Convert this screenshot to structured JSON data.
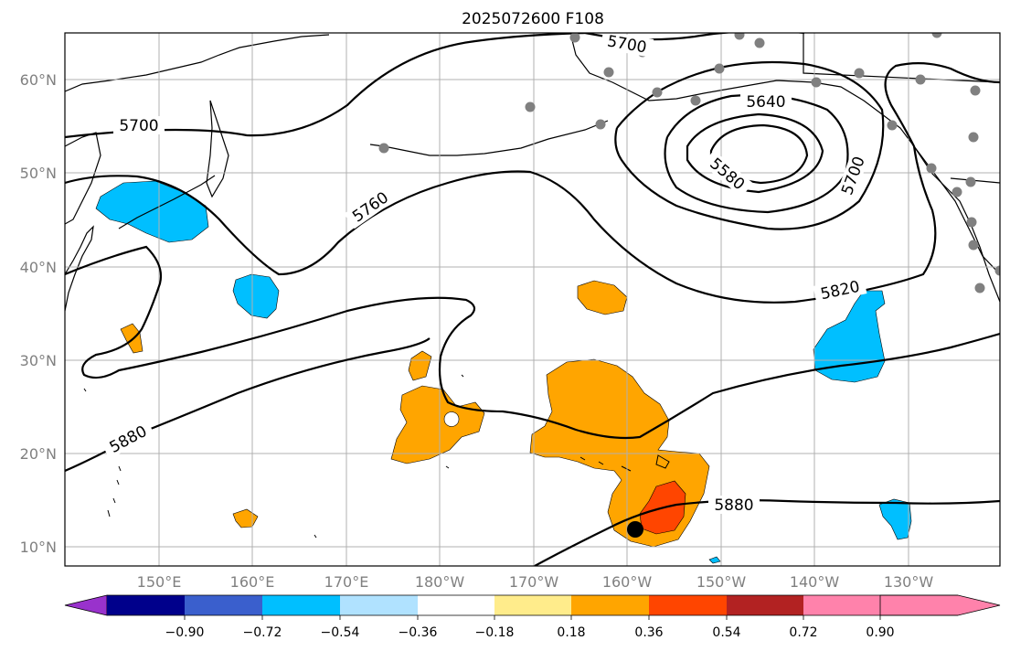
{
  "title": "2025072600 F108",
  "map": {
    "lon_labels": [
      "150°E",
      "160°E",
      "170°E",
      "180°W",
      "170°W",
      "160°W",
      "150°W",
      "140°W",
      "130°W"
    ],
    "lat_labels": [
      "10°N",
      "20°N",
      "30°N",
      "40°N",
      "50°N",
      "60°N"
    ],
    "contour_labels": [
      "5700",
      "5640",
      "5580",
      "5700",
      "5700",
      "5760",
      "5820",
      "5880",
      "5880"
    ],
    "colors": {
      "land_outline": "#000000",
      "grid": "#b0b0b0",
      "station": "#808080",
      "marker": "#000000"
    }
  },
  "colorbar": {
    "bins": [
      "#9932cc",
      "#00008b",
      "#3a5fcd",
      "#00bfff",
      "#b0e2ff",
      "#ffffff",
      "#ffec8b",
      "#ffa500",
      "#ff4500",
      "#b22222",
      "#ff82ab"
    ],
    "tick_labels": [
      "−0.90",
      "−0.72",
      "−0.54",
      "−0.36",
      "−0.18",
      "0.18",
      "0.36",
      "0.54",
      "0.72",
      "0.90"
    ]
  }
}
